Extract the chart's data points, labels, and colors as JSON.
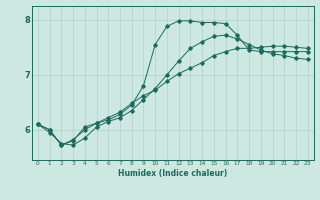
{
  "title": "",
  "xlabel": "Humidex (Indice chaleur)",
  "ylabel": "",
  "bg_color": "#cce8e0",
  "line_color": "#1a6b5e",
  "grid_color": "#aed0c8",
  "xlim": [
    -0.5,
    23.5
  ],
  "ylim": [
    5.45,
    8.25
  ],
  "yticks": [
    6,
    7,
    8
  ],
  "xticks": [
    0,
    1,
    2,
    3,
    4,
    5,
    6,
    7,
    8,
    9,
    10,
    11,
    12,
    13,
    14,
    15,
    16,
    17,
    18,
    19,
    20,
    21,
    22,
    23
  ],
  "line1_x": [
    0,
    1,
    2,
    3,
    4,
    5,
    6,
    7,
    8,
    9,
    10,
    11,
    12,
    13,
    14,
    15,
    16,
    17,
    18,
    19,
    20,
    21,
    22,
    23
  ],
  "line1_y": [
    6.1,
    5.95,
    5.75,
    5.72,
    5.85,
    6.05,
    6.15,
    6.22,
    6.35,
    6.55,
    6.75,
    7.0,
    7.25,
    7.48,
    7.6,
    7.7,
    7.72,
    7.65,
    7.55,
    7.45,
    7.38,
    7.35,
    7.3,
    7.28
  ],
  "line2_x": [
    0,
    1,
    2,
    3,
    4,
    5,
    6,
    7,
    8,
    9,
    10,
    11,
    12,
    13,
    14,
    15,
    16,
    17,
    18,
    19,
    20,
    21,
    22,
    23
  ],
  "line2_y": [
    6.1,
    6.0,
    5.72,
    5.8,
    6.05,
    6.12,
    6.18,
    6.28,
    6.45,
    6.8,
    7.55,
    7.88,
    7.98,
    7.98,
    7.95,
    7.95,
    7.93,
    7.72,
    7.45,
    7.42,
    7.42,
    7.42,
    7.42,
    7.42
  ],
  "line3_x": [
    0,
    1,
    2,
    3,
    4,
    5,
    6,
    7,
    8,
    9,
    10,
    11,
    12,
    13,
    14,
    15,
    16,
    17,
    18,
    19,
    20,
    21,
    22,
    23
  ],
  "line3_y": [
    6.1,
    6.0,
    5.72,
    5.82,
    6.0,
    6.12,
    6.22,
    6.32,
    6.48,
    6.62,
    6.72,
    6.88,
    7.02,
    7.12,
    7.22,
    7.35,
    7.42,
    7.48,
    7.48,
    7.5,
    7.52,
    7.52,
    7.5,
    7.48
  ],
  "xlabel_fontsize": 5.5,
  "ylabel_fontsize": 6,
  "xtick_fontsize": 4.2,
  "ytick_fontsize": 6
}
